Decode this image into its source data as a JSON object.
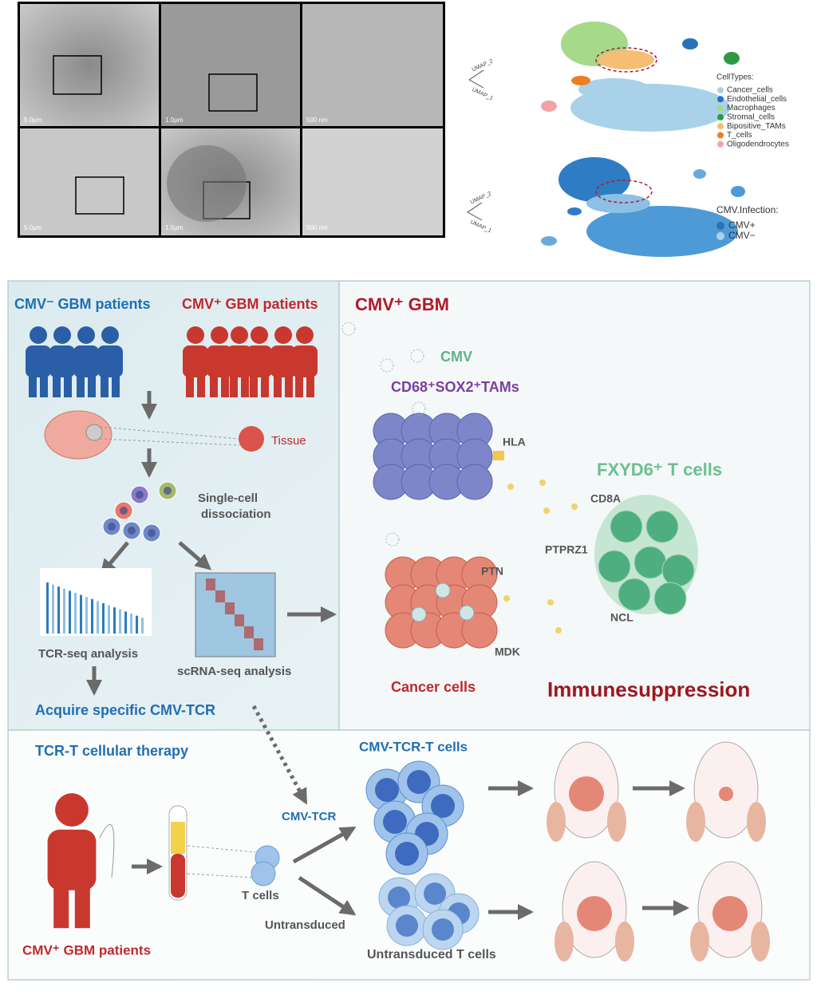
{
  "em_panels": {
    "scale_labels": [
      "5.0μm",
      "1.0μm",
      "500 nm",
      "5.0μm",
      "1.0μm",
      "500 nm"
    ]
  },
  "umap": {
    "axis_labels": [
      "UMAP_2",
      "UMAP_1"
    ],
    "celltypes": {
      "title": "CellTypes:",
      "items": [
        "Cancer_cells",
        "Endothelial_cells",
        "Macrophages",
        "Stromal_cells",
        "Bipositive_TAMs",
        "T_cells",
        "Oligodendrocytes"
      ]
    },
    "infection": {
      "title": "CMV.Infection:",
      "items": [
        "CMV+",
        "CMV−"
      ]
    }
  },
  "workflow": {
    "neg_patients": "CMV⁻ GBM patients",
    "pos_patients": "CMV⁺ GBM patients",
    "tissue": "Tissue",
    "dissociation": [
      "Single-cell",
      "dissociation"
    ],
    "tcr_seq": "TCR-seq analysis",
    "scrna_seq": "scRNA-seq analysis",
    "acquire": "Acquire specific CMV-TCR"
  },
  "mechanism": {
    "title": "CMV⁺ GBM",
    "cmv": "CMV",
    "tams": "CD68⁺SOX2⁺TAMs",
    "hla": "HLA",
    "t_cells": "FXYD6⁺ T cells",
    "cd8a": "CD8A",
    "ptprz1": "PTPRZ1",
    "ptn": "PTN",
    "ncl": "NCL",
    "mdk": "MDK",
    "cancer_cells": "Cancer cells",
    "outcome": "Immunesuppression"
  },
  "therapy": {
    "title": "TCR-T cellular therapy",
    "tcr_t_cells": "CMV-TCR-T cells",
    "cmv_tcr": "CMV-TCR",
    "t_cells": "T cells",
    "untransduced": "Untransduced",
    "untransduced_cells": "Untransduced T cells",
    "patients": "CMV⁺ GBM patients"
  }
}
